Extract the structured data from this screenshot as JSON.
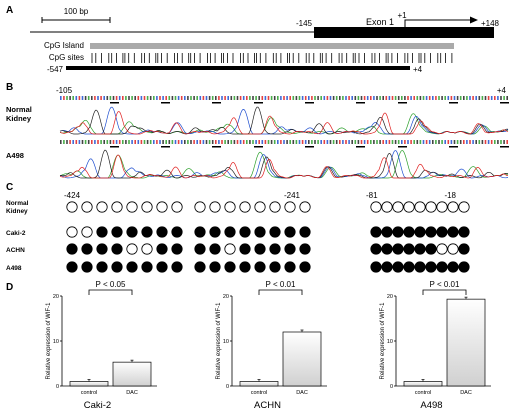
{
  "panels": {
    "a": "A",
    "b": "B",
    "c": "C",
    "d": "D"
  },
  "panel_a": {
    "scale_bar": "100 bp",
    "exon_start": "-145",
    "exon_label": "Exon 1",
    "tss": "+1",
    "exon_end": "+148",
    "cpg_island_label": "CpG Island",
    "cpg_sites_label": "CpG sites",
    "amplicon_start": "-547",
    "amplicon_end": "+4"
  },
  "panel_b": {
    "pos_start": "-105",
    "pos_end": "+4",
    "rows": [
      {
        "label_lines": [
          "Normal",
          "Kidney"
        ]
      },
      {
        "label_lines": [
          "A498"
        ]
      }
    ]
  },
  "panel_c": {
    "pos_labels": [
      "-424",
      "-241",
      "-81",
      "-18"
    ],
    "rows": [
      {
        "label_lines": [
          "Normal",
          "Kidney"
        ],
        "left": [
          0,
          0,
          0,
          0,
          0,
          0,
          0,
          0,
          0,
          0,
          0,
          0,
          0,
          0,
          0,
          0
        ],
        "right": [
          0,
          0,
          0,
          0,
          0,
          0,
          0,
          0,
          0
        ]
      },
      {
        "label_lines": [
          "Caki-2"
        ],
        "left": [
          0,
          0,
          1,
          1,
          1,
          1,
          1,
          1,
          1,
          1,
          1,
          1,
          1,
          1,
          1,
          1
        ],
        "right": [
          1,
          1,
          1,
          1,
          1,
          1,
          1,
          1,
          1
        ]
      },
      {
        "label_lines": [
          "ACHN"
        ],
        "left": [
          1,
          1,
          1,
          1,
          0,
          0,
          1,
          1,
          1,
          1,
          0,
          1,
          1,
          1,
          1,
          1
        ],
        "right": [
          1,
          1,
          1,
          1,
          1,
          1,
          0,
          0,
          1
        ]
      },
      {
        "label_lines": [
          "A498"
        ],
        "left": [
          1,
          1,
          1,
          1,
          1,
          1,
          1,
          1,
          1,
          1,
          1,
          1,
          1,
          1,
          1,
          1
        ],
        "right": [
          1,
          1,
          1,
          1,
          1,
          1,
          1,
          1,
          1
        ]
      }
    ]
  },
  "chart_data": [
    {
      "type": "bar",
      "title": "Caki-2",
      "ylabel": "Relative expression of WIF-1",
      "categories": [
        "control",
        "DAC"
      ],
      "values": [
        1,
        5.3
      ],
      "ylim": [
        0,
        20
      ],
      "yticks": [
        "0",
        "10",
        "20"
      ],
      "annotation": "P < 0.05"
    },
    {
      "type": "bar",
      "title": "ACHN",
      "ylabel": "Relative expression of WIF-1",
      "categories": [
        "control",
        "DAC"
      ],
      "values": [
        1,
        12
      ],
      "ylim": [
        0,
        20
      ],
      "yticks": [
        "0",
        "10",
        "20"
      ],
      "annotation": "P < 0.01"
    },
    {
      "type": "bar",
      "title": "A498",
      "ylabel": "Relative expression of WIF-1",
      "categories": [
        "control",
        "DAC"
      ],
      "values": [
        1,
        19.3
      ],
      "ylim": [
        0,
        20
      ],
      "yticks": [
        "0",
        "10",
        "20"
      ],
      "annotation": "P < 0.01"
    }
  ],
  "colors": {
    "bar_top": "#ffffff",
    "bar_bottom": "#d4d4d4",
    "exon": "#000000",
    "cpg_island": "#aaaaaa",
    "trace_a": "#2ca02c",
    "trace_c": "#1f4fd0",
    "trace_g": "#222222",
    "trace_t": "#e02020"
  }
}
